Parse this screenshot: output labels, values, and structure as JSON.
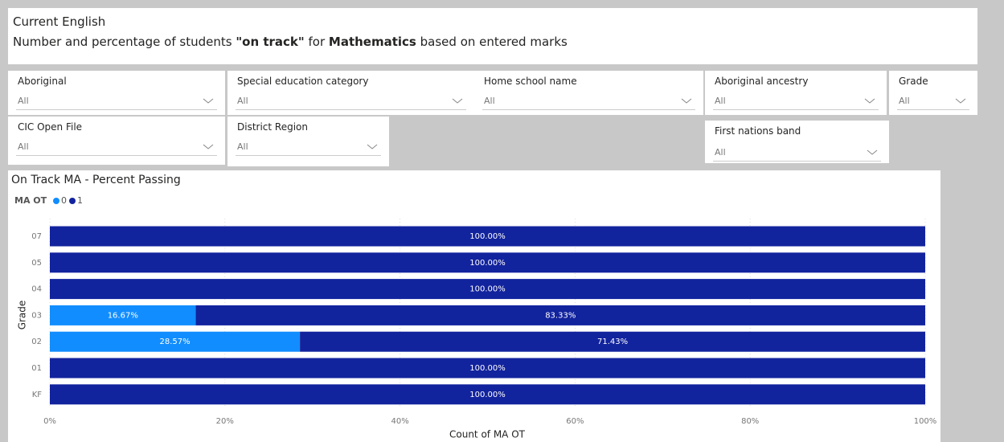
{
  "header": {
    "title": "Current English",
    "subtitle": [
      "Number and percentage of students ",
      "\"on track\"",
      " for ",
      "Mathematics",
      " based on entered marks"
    ]
  },
  "filters": [
    {
      "label": "Aboriginal",
      "value": "All"
    },
    {
      "label": "Special education category",
      "value": "All"
    },
    {
      "label": "Home school name",
      "value": "All"
    },
    {
      "label": "Aboriginal ancestry",
      "value": "All"
    },
    {
      "label": "Grade",
      "value": "All"
    },
    {
      "label": "CIC Open File",
      "value": "All"
    },
    {
      "label": "District Region",
      "value": "All"
    },
    {
      "label": "First nations band",
      "value": "All"
    }
  ],
  "chart_data": {
    "type": "stacked_bar_horizontal",
    "title": "On Track MA - Percent Passing",
    "legend_title": "MA OT",
    "categories": [
      "07",
      "05",
      "04",
      "03",
      "02",
      "01",
      "KF"
    ],
    "series": [
      {
        "name": "0",
        "color": "#118dff",
        "values": [
          0,
          0,
          0,
          16.67,
          28.57,
          0,
          0
        ],
        "value_labels": [
          null,
          null,
          null,
          "16.67%",
          "28.57%",
          null,
          null
        ]
      },
      {
        "name": "1",
        "color": "#12239e",
        "values": [
          100,
          100,
          100,
          83.33,
          71.43,
          100,
          100
        ],
        "value_labels": [
          "100.00%",
          "100.00%",
          "100.00%",
          "83.33%",
          "71.43%",
          "100.00%",
          "100.00%"
        ]
      }
    ],
    "xlim": [
      0,
      100
    ],
    "xticks": [
      {
        "value": 0,
        "label": "0%"
      },
      {
        "value": 20,
        "label": "20%"
      },
      {
        "value": 40,
        "label": "40%"
      },
      {
        "value": 60,
        "label": "60%"
      },
      {
        "value": 80,
        "label": "80%"
      },
      {
        "value": 100,
        "label": "100%"
      }
    ],
    "xlabel": "Count of MA OT",
    "ylabel": "Grade",
    "grid": true
  }
}
